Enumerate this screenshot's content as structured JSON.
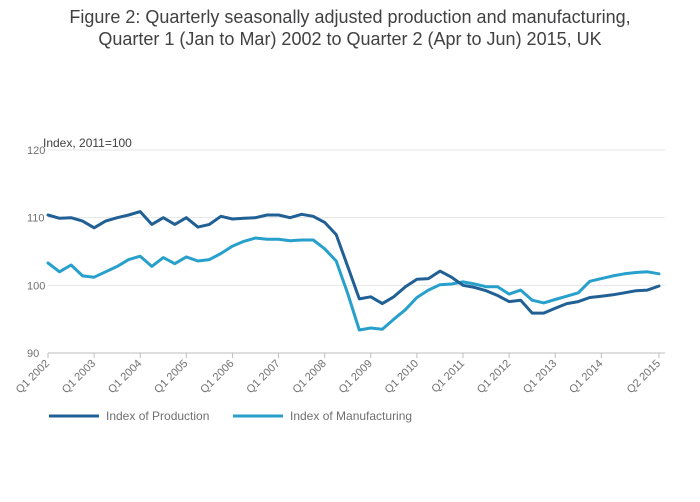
{
  "chart_data": {
    "type": "line",
    "title_lines": [
      "Figure 2: Quarterly seasonally adjusted production and manufacturing,",
      "Quarter 1 (Jan to Mar) 2002 to Quarter 2 (Apr to Jun) 2015, UK"
    ],
    "ylabel": "Index, 2011=100",
    "ylim": [
      90,
      120
    ],
    "yticks": [
      90,
      100,
      110,
      120
    ],
    "x_count": 54,
    "x_tick_labels": [
      "Q1 2002",
      "Q1 2003",
      "Q1 2004",
      "Q1 2005",
      "Q1 2006",
      "Q1 2007",
      "Q1 2008",
      "Q1 2009",
      "Q1 2010",
      "Q1 2011",
      "Q1 2012",
      "Q1 2013",
      "Q1 2014",
      "Q2 2015"
    ],
    "x_tick_indices": [
      0,
      4,
      8,
      12,
      16,
      20,
      24,
      28,
      32,
      36,
      40,
      44,
      48,
      53
    ],
    "grid": true,
    "legend_position": "bottom-left",
    "series": [
      {
        "name": "Index of Production",
        "color": "#206095",
        "values": [
          110.4,
          109.9,
          110.0,
          109.5,
          108.5,
          109.5,
          110.0,
          110.4,
          110.9,
          109.0,
          110.0,
          109.0,
          110.0,
          108.6,
          109.0,
          110.2,
          109.8,
          109.9,
          110.0,
          110.4,
          110.4,
          110.0,
          110.5,
          110.2,
          109.3,
          107.5,
          102.8,
          98.0,
          98.3,
          97.3,
          98.3,
          99.8,
          100.9,
          101.0,
          102.1,
          101.2,
          100.0,
          99.7,
          99.2,
          98.5,
          97.6,
          97.8,
          95.9,
          95.9,
          96.6,
          97.3,
          97.6,
          98.2,
          98.4,
          98.6,
          98.9,
          99.2,
          99.3,
          99.9
        ]
      },
      {
        "name": "Index of Manufacturing",
        "color": "#27A0CC",
        "values": [
          103.3,
          102.0,
          103.0,
          101.4,
          101.2,
          102.0,
          102.8,
          103.8,
          104.3,
          102.8,
          104.1,
          103.2,
          104.2,
          103.6,
          103.8,
          104.7,
          105.8,
          106.5,
          107.0,
          106.8,
          106.8,
          106.6,
          106.7,
          106.7,
          105.4,
          103.6,
          98.8,
          93.4,
          93.7,
          93.5,
          95.0,
          96.4,
          98.2,
          99.3,
          100.1,
          100.2,
          100.5,
          100.2,
          99.8,
          99.8,
          98.7,
          99.3,
          97.8,
          97.4,
          97.9,
          98.4,
          98.9,
          100.6,
          101.0,
          101.4,
          101.7,
          101.9,
          102.0,
          101.7
        ]
      }
    ]
  }
}
